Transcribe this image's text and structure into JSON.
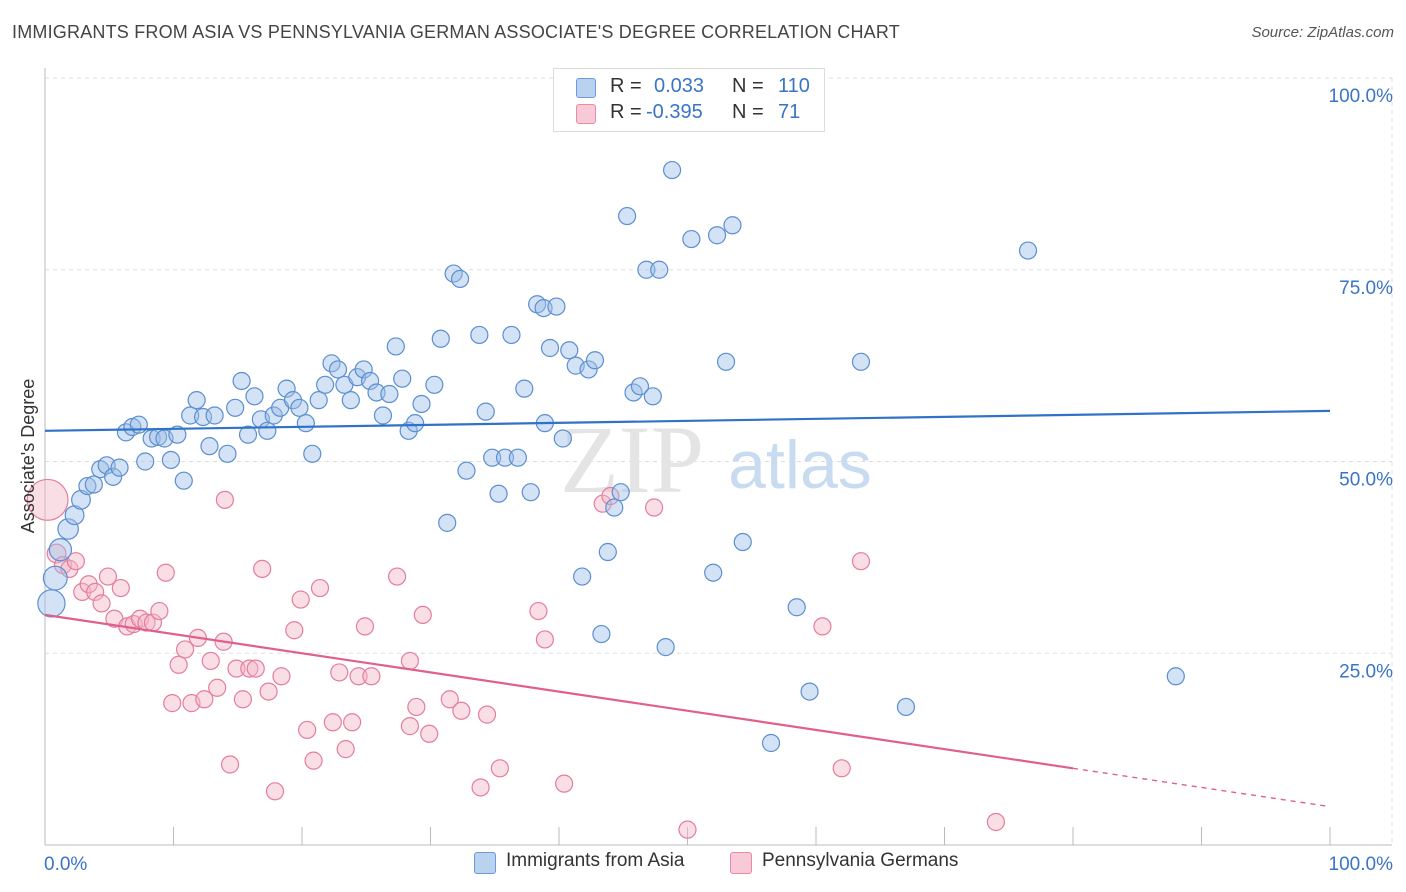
{
  "title": "IMMIGRANTS FROM ASIA VS PENNSYLVANIA GERMAN ASSOCIATE'S DEGREE CORRELATION CHART",
  "source": "Source: ZipAtlas.com",
  "watermark": {
    "zip": "ZIP",
    "atlas": "atlas"
  },
  "legend": {
    "r_label": "R =",
    "n_label": "N =",
    "series": [
      {
        "r": "0.033",
        "n": "110"
      },
      {
        "r": "-0.395",
        "n": "71"
      }
    ]
  },
  "chart_data": {
    "type": "scatter",
    "title": "IMMIGRANTS FROM ASIA VS PENNSYLVANIA GERMAN ASSOCIATE'S DEGREE CORRELATION CHART",
    "xlabel": "",
    "ylabel": "Associate's Degree",
    "xlim": [
      0,
      100
    ],
    "ylim": [
      0,
      100
    ],
    "x_tick_labels": [
      "0.0%",
      "100.0%"
    ],
    "y_tick_labels": [
      "100.0%",
      "75.0%",
      "50.0%",
      "25.0%"
    ],
    "y_ticks": [
      100,
      75,
      50,
      25
    ],
    "grid": true,
    "series": [
      {
        "name": "Immigrants from Asia",
        "color": "#9dbfe8",
        "edge": "#5b8fd0",
        "line_color": "#2f72c8",
        "trend": {
          "x1": 0,
          "y1": 54.0,
          "x2": 100,
          "y2": 56.6,
          "dash_from": null
        },
        "points": [
          [
            0.5,
            31.5,
            1.6
          ],
          [
            0.8,
            34.8,
            1.4
          ],
          [
            1.2,
            38.5,
            1.3
          ],
          [
            1.8,
            41.2,
            1.2
          ],
          [
            2.3,
            43.0,
            1.1
          ],
          [
            2.8,
            45.0,
            1.1
          ],
          [
            3.3,
            46.8,
            1.0
          ],
          [
            3.8,
            47.0,
            1.0
          ],
          [
            4.3,
            49.0,
            1.0
          ],
          [
            4.8,
            49.5,
            1.0
          ],
          [
            5.3,
            48.0,
            1.0
          ],
          [
            5.8,
            49.2,
            1.0
          ],
          [
            6.3,
            53.8,
            1.0
          ],
          [
            6.8,
            54.5,
            1.0
          ],
          [
            7.3,
            54.8,
            1.0
          ],
          [
            7.8,
            50.0,
            1.0
          ],
          [
            8.3,
            53.0,
            1.0
          ],
          [
            8.8,
            53.2,
            1.0
          ],
          [
            9.3,
            53.0,
            1.0
          ],
          [
            9.8,
            50.2,
            1.0
          ],
          [
            10.3,
            53.5,
            1.0
          ],
          [
            10.8,
            47.5,
            1.0
          ],
          [
            11.3,
            56.0,
            1.0
          ],
          [
            11.8,
            58.0,
            1.0
          ],
          [
            12.3,
            55.8,
            1.0
          ],
          [
            12.8,
            52.0,
            1.0
          ],
          [
            13.2,
            56.0,
            1.0
          ],
          [
            14.2,
            51.0,
            1.0
          ],
          [
            14.8,
            57.0,
            1.0
          ],
          [
            15.3,
            60.5,
            1.0
          ],
          [
            15.8,
            53.5,
            1.0
          ],
          [
            16.3,
            58.5,
            1.0
          ],
          [
            16.8,
            55.5,
            1.0
          ],
          [
            17.3,
            54.0,
            1.0
          ],
          [
            17.8,
            56.0,
            1.0
          ],
          [
            18.3,
            57.0,
            1.0
          ],
          [
            18.8,
            59.5,
            1.0
          ],
          [
            19.3,
            58.0,
            1.0
          ],
          [
            19.8,
            57.0,
            1.0
          ],
          [
            20.3,
            55.0,
            1.0
          ],
          [
            20.8,
            51.0,
            1.0
          ],
          [
            21.3,
            58.0,
            1.0
          ],
          [
            21.8,
            60.0,
            1.0
          ],
          [
            22.3,
            62.8,
            1.0
          ],
          [
            22.8,
            62.0,
            1.0
          ],
          [
            23.3,
            60.0,
            1.0
          ],
          [
            23.8,
            58.0,
            1.0
          ],
          [
            24.3,
            61.0,
            1.0
          ],
          [
            24.8,
            62.0,
            1.0
          ],
          [
            25.3,
            60.5,
            1.0
          ],
          [
            25.8,
            59.0,
            1.0
          ],
          [
            26.3,
            56.0,
            1.0
          ],
          [
            26.8,
            58.8,
            1.0
          ],
          [
            27.3,
            65.0,
            1.0
          ],
          [
            27.8,
            60.8,
            1.0
          ],
          [
            28.3,
            54.0,
            1.0
          ],
          [
            28.8,
            55.0,
            1.0
          ],
          [
            29.3,
            57.5,
            1.0
          ],
          [
            30.3,
            60.0,
            1.0
          ],
          [
            30.8,
            66.0,
            1.0
          ],
          [
            31.3,
            42.0,
            1.0
          ],
          [
            31.8,
            74.5,
            1.0
          ],
          [
            32.3,
            73.8,
            1.0
          ],
          [
            32.8,
            48.8,
            1.0
          ],
          [
            33.8,
            66.5,
            1.0
          ],
          [
            34.3,
            56.5,
            1.0
          ],
          [
            34.8,
            50.5,
            1.0
          ],
          [
            35.3,
            45.8,
            1.0
          ],
          [
            35.8,
            50.5,
            1.0
          ],
          [
            36.3,
            66.5,
            1.0
          ],
          [
            36.8,
            50.5,
            1.0
          ],
          [
            37.3,
            59.5,
            1.0
          ],
          [
            37.8,
            46.0,
            1.0
          ],
          [
            38.3,
            70.5,
            1.0
          ],
          [
            38.8,
            70.0,
            1.0
          ],
          [
            38.9,
            55.0,
            1.0
          ],
          [
            39.3,
            64.8,
            1.0
          ],
          [
            39.8,
            70.2,
            1.0
          ],
          [
            40.3,
            53.0,
            1.0
          ],
          [
            40.8,
            64.5,
            1.0
          ],
          [
            41.3,
            62.5,
            1.0
          ],
          [
            41.8,
            35.0,
            1.0
          ],
          [
            42.3,
            62.0,
            1.0
          ],
          [
            42.8,
            63.2,
            1.0
          ],
          [
            43.3,
            27.5,
            1.0
          ],
          [
            43.8,
            38.2,
            1.0
          ],
          [
            44.3,
            44.0,
            1.0
          ],
          [
            44.8,
            46.0,
            1.0
          ],
          [
            45.3,
            82.0,
            1.0
          ],
          [
            45.8,
            59.0,
            1.0
          ],
          [
            46.3,
            59.8,
            1.0
          ],
          [
            46.8,
            75.0,
            1.0
          ],
          [
            47.3,
            58.5,
            1.0
          ],
          [
            47.8,
            75.0,
            1.0
          ],
          [
            48.3,
            25.8,
            1.0
          ],
          [
            48.8,
            88.0,
            1.0
          ],
          [
            50.3,
            79.0,
            1.0
          ],
          [
            52.0,
            35.5,
            1.0
          ],
          [
            52.3,
            79.5,
            1.0
          ],
          [
            53.0,
            63.0,
            1.0
          ],
          [
            53.5,
            80.8,
            1.0
          ],
          [
            54.3,
            39.5,
            1.0
          ],
          [
            56.5,
            13.3,
            1.0
          ],
          [
            58.5,
            31.0,
            1.0
          ],
          [
            59.5,
            20.0,
            1.0
          ],
          [
            63.5,
            63.0,
            1.0
          ],
          [
            67.0,
            18.0,
            1.0
          ],
          [
            76.5,
            77.5,
            1.0
          ],
          [
            88.0,
            22.0,
            1.0
          ]
        ]
      },
      {
        "name": "Pennsylvania Germans",
        "color": "#f2b5c8",
        "edge": "#e57d9d",
        "line_color": "#e0608b",
        "trend": {
          "x1": 0,
          "y1": 30.0,
          "x2": 100,
          "y2": 5.0,
          "dash_from": 80
        },
        "points": [
          [
            0.2,
            45.0,
            2.4
          ],
          [
            0.9,
            38.0,
            1.1
          ],
          [
            1.4,
            36.5,
            1.0
          ],
          [
            1.9,
            36.0,
            1.0
          ],
          [
            2.4,
            37.0,
            1.0
          ],
          [
            2.9,
            33.0,
            1.0
          ],
          [
            3.4,
            34.0,
            1.0
          ],
          [
            3.9,
            33.0,
            1.0
          ],
          [
            4.4,
            31.5,
            1.0
          ],
          [
            4.9,
            35.0,
            1.0
          ],
          [
            5.4,
            29.5,
            1.0
          ],
          [
            5.9,
            33.5,
            1.0
          ],
          [
            6.4,
            28.5,
            1.0
          ],
          [
            6.9,
            28.8,
            1.0
          ],
          [
            7.4,
            29.5,
            1.0
          ],
          [
            7.9,
            29.0,
            1.0
          ],
          [
            8.4,
            29.0,
            1.0
          ],
          [
            8.9,
            30.5,
            1.0
          ],
          [
            9.4,
            35.5,
            1.0
          ],
          [
            9.9,
            18.5,
            1.0
          ],
          [
            10.4,
            23.5,
            1.0
          ],
          [
            10.9,
            25.5,
            1.0
          ],
          [
            11.4,
            18.5,
            1.0
          ],
          [
            11.9,
            27.0,
            1.0
          ],
          [
            12.4,
            19.0,
            1.0
          ],
          [
            12.9,
            24.0,
            1.0
          ],
          [
            13.4,
            20.5,
            1.0
          ],
          [
            13.9,
            26.5,
            1.0
          ],
          [
            14.0,
            45.0,
            1.0
          ],
          [
            14.4,
            10.5,
            1.0
          ],
          [
            14.9,
            23.0,
            1.0
          ],
          [
            15.4,
            19.0,
            1.0
          ],
          [
            15.9,
            23.0,
            1.0
          ],
          [
            16.4,
            23.0,
            1.0
          ],
          [
            16.9,
            36.0,
            1.0
          ],
          [
            17.4,
            20.0,
            1.0
          ],
          [
            17.9,
            7.0,
            1.0
          ],
          [
            18.4,
            22.0,
            1.0
          ],
          [
            19.4,
            28.0,
            1.0
          ],
          [
            19.9,
            32.0,
            1.0
          ],
          [
            20.4,
            15.0,
            1.0
          ],
          [
            20.9,
            11.0,
            1.0
          ],
          [
            21.4,
            33.5,
            1.0
          ],
          [
            22.4,
            16.0,
            1.0
          ],
          [
            22.9,
            22.5,
            1.0
          ],
          [
            23.4,
            12.5,
            1.0
          ],
          [
            23.9,
            16.0,
            1.0
          ],
          [
            24.4,
            22.0,
            1.0
          ],
          [
            24.9,
            28.5,
            1.0
          ],
          [
            25.4,
            22.0,
            1.0
          ],
          [
            27.4,
            35.0,
            1.0
          ],
          [
            28.4,
            15.5,
            1.0
          ],
          [
            28.4,
            24.0,
            1.0
          ],
          [
            28.9,
            18.0,
            1.0
          ],
          [
            29.4,
            30.0,
            1.0
          ],
          [
            29.9,
            14.5,
            1.0
          ],
          [
            31.5,
            19.0,
            1.0
          ],
          [
            32.4,
            17.5,
            1.0
          ],
          [
            33.9,
            7.5,
            1.0
          ],
          [
            34.4,
            17.0,
            1.0
          ],
          [
            35.4,
            10.0,
            1.0
          ],
          [
            38.4,
            30.5,
            1.0
          ],
          [
            38.9,
            26.8,
            1.0
          ],
          [
            40.4,
            8.0,
            1.0
          ],
          [
            43.4,
            44.5,
            1.0
          ],
          [
            44.0,
            45.5,
            1.0
          ],
          [
            47.4,
            44.0,
            1.0
          ],
          [
            50.0,
            2.0,
            1.0
          ],
          [
            60.5,
            28.5,
            1.0
          ],
          [
            62.0,
            10.0,
            1.0
          ],
          [
            63.5,
            37.0,
            1.0
          ],
          [
            74.0,
            3.0,
            1.0
          ]
        ]
      }
    ]
  }
}
